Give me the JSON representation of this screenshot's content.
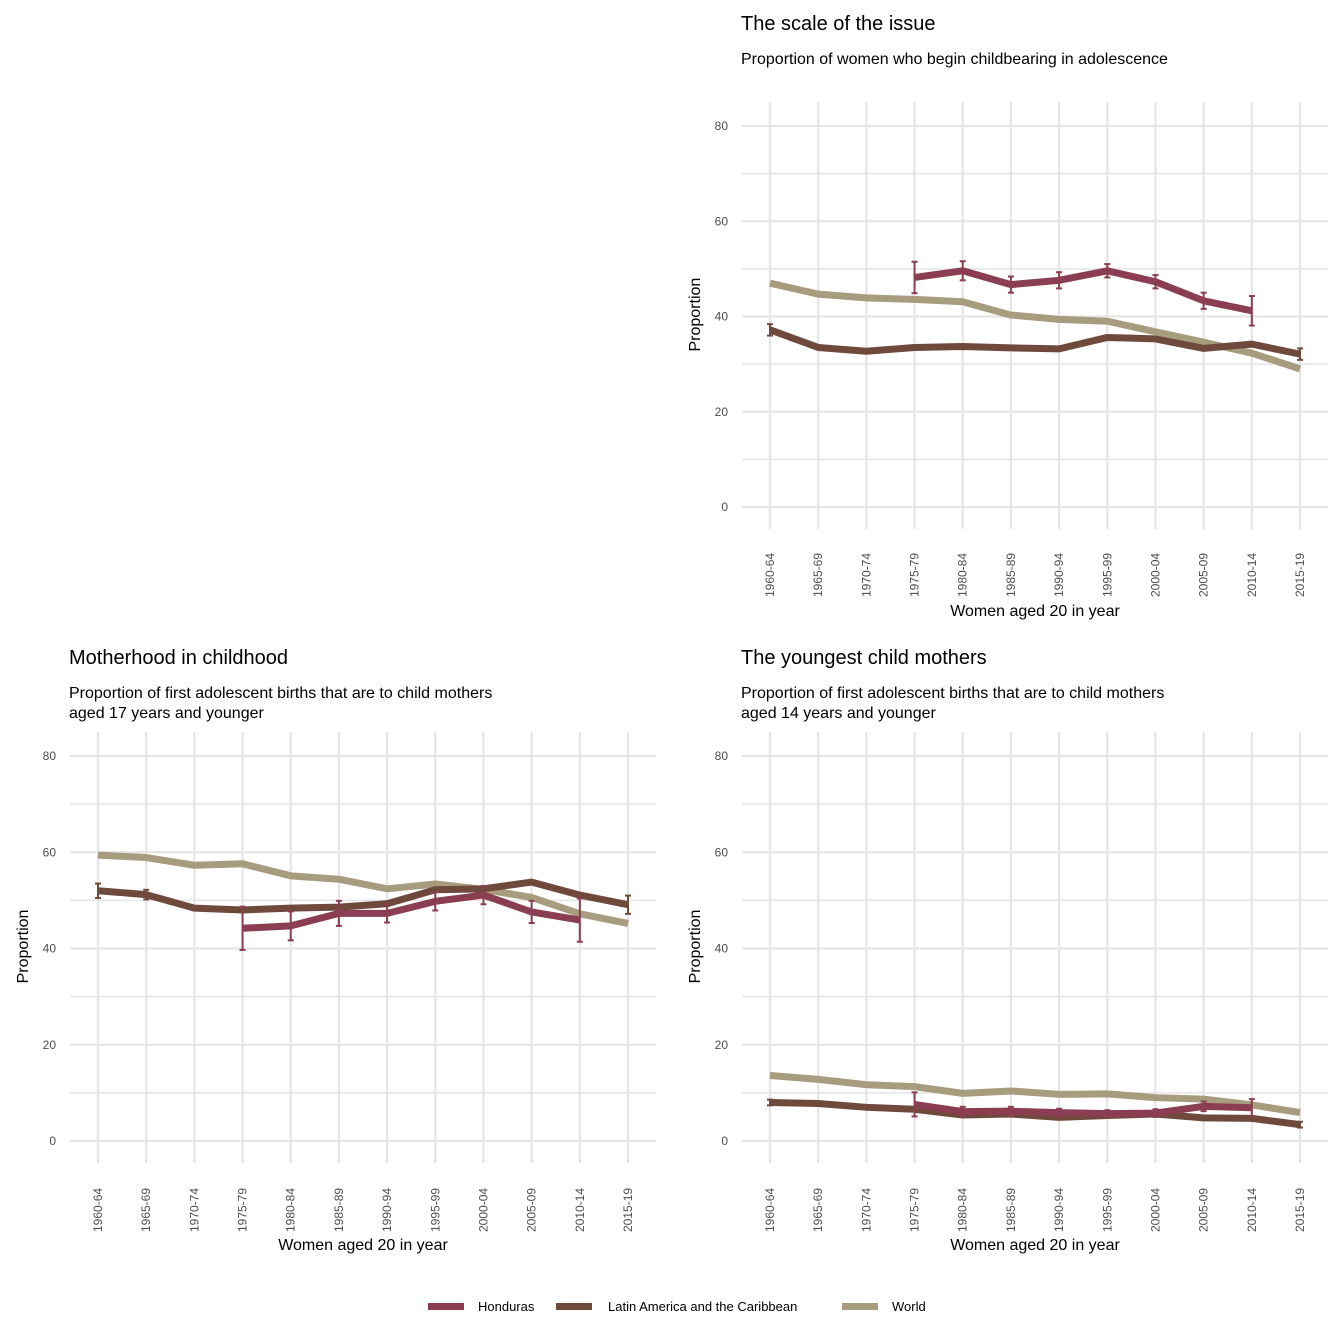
{
  "chart_data": [
    {
      "id": "scale",
      "type": "line",
      "title": "The scale of the issue",
      "subtitle": [
        "Proportion of women who begin childbearing in adolescence"
      ],
      "xlabel": "Women aged 20 in year",
      "ylabel": "Proportion",
      "ylim": [
        0,
        85
      ],
      "yticks": [
        0,
        20,
        40,
        60,
        80
      ],
      "grid": true,
      "categories": [
        "1960-64",
        "1965-69",
        "1970-74",
        "1975-79",
        "1980-84",
        "1985-89",
        "1990-94",
        "1995-99",
        "2000-04",
        "2005-09",
        "2010-14",
        "2015-19"
      ],
      "series": [
        {
          "name": "World",
          "values": [
            47.0,
            44.7,
            43.9,
            43.6,
            43.1,
            40.3,
            39.4,
            39.0,
            36.8,
            34.6,
            32.3,
            29.0
          ],
          "err": [
            null,
            null,
            null,
            null,
            null,
            null,
            null,
            null,
            null,
            null,
            null,
            null
          ]
        },
        {
          "name": "Latin America and the Caribbean",
          "values": [
            37.2,
            33.5,
            32.7,
            33.5,
            33.7,
            33.4,
            33.2,
            35.6,
            35.3,
            33.3,
            34.2,
            32.1
          ],
          "err": [
            1.2,
            null,
            null,
            null,
            null,
            null,
            null,
            null,
            null,
            null,
            null,
            1.2
          ]
        },
        {
          "name": "Honduras",
          "values": [
            null,
            null,
            null,
            48.2,
            49.6,
            46.7,
            47.6,
            49.6,
            47.3,
            43.3,
            41.2,
            null
          ],
          "err": [
            null,
            null,
            null,
            3.3,
            2.0,
            1.7,
            1.7,
            1.4,
            1.4,
            1.7,
            3.1,
            null
          ]
        }
      ]
    },
    {
      "id": "childhood",
      "type": "line",
      "title": "Motherhood in childhood",
      "subtitle": [
        "Proportion of first adolescent births that are to child mothers",
        "aged 17 years and younger"
      ],
      "xlabel": "Women aged 20 in year",
      "ylabel": "Proportion",
      "ylim": [
        0,
        85
      ],
      "yticks": [
        0,
        20,
        40,
        60,
        80
      ],
      "grid": true,
      "categories": [
        "1960-64",
        "1965-69",
        "1970-74",
        "1975-79",
        "1980-84",
        "1985-89",
        "1990-94",
        "1995-99",
        "2000-04",
        "2005-09",
        "2010-14",
        "2015-19"
      ],
      "series": [
        {
          "name": "World",
          "values": [
            59.4,
            58.9,
            57.3,
            57.6,
            55.1,
            54.4,
            52.4,
            53.4,
            52.3,
            50.6,
            47.2,
            45.2
          ],
          "err": [
            null,
            null,
            null,
            null,
            null,
            null,
            null,
            null,
            null,
            null,
            null,
            null
          ]
        },
        {
          "name": "Latin America and the Caribbean",
          "values": [
            52.0,
            51.2,
            48.4,
            48.0,
            48.4,
            48.6,
            49.3,
            52.2,
            52.4,
            53.8,
            51.1,
            49.1
          ],
          "err": [
            1.5,
            1.0,
            null,
            null,
            null,
            null,
            null,
            null,
            null,
            null,
            null,
            1.9
          ]
        },
        {
          "name": "Honduras",
          "values": [
            null,
            null,
            null,
            44.2,
            44.7,
            47.3,
            47.3,
            49.8,
            51.1,
            47.6,
            45.9,
            null
          ],
          "err": [
            null,
            null,
            null,
            4.5,
            3.0,
            2.6,
            1.9,
            1.9,
            1.9,
            2.3,
            4.5,
            null
          ]
        }
      ]
    },
    {
      "id": "youngest",
      "type": "line",
      "title": "The youngest child mothers",
      "subtitle": [
        "Proportion of first adolescent births that are to child mothers",
        "aged 14 years and younger"
      ],
      "xlabel": "Women aged 20 in year",
      "ylabel": "Proportion",
      "ylim": [
        0,
        85
      ],
      "yticks": [
        0,
        20,
        40,
        60,
        80
      ],
      "grid": true,
      "categories": [
        "1960-64",
        "1965-69",
        "1970-74",
        "1975-79",
        "1980-84",
        "1985-89",
        "1990-94",
        "1995-99",
        "2000-04",
        "2005-09",
        "2010-14",
        "2015-19"
      ],
      "series": [
        {
          "name": "World",
          "values": [
            13.6,
            12.8,
            11.7,
            11.3,
            9.9,
            10.4,
            9.7,
            9.8,
            9.0,
            8.7,
            7.5,
            5.9
          ],
          "err": [
            null,
            null,
            null,
            null,
            null,
            null,
            null,
            null,
            null,
            null,
            null,
            null
          ]
        },
        {
          "name": "Latin America and the Caribbean",
          "values": [
            8.0,
            7.8,
            7.0,
            6.6,
            5.4,
            5.6,
            4.9,
            5.3,
            5.6,
            4.8,
            4.7,
            3.4
          ],
          "err": [
            0.6,
            null,
            null,
            null,
            null,
            null,
            null,
            null,
            null,
            null,
            null,
            0.6
          ]
        },
        {
          "name": "Honduras",
          "values": [
            null,
            null,
            null,
            7.6,
            6.1,
            6.2,
            5.9,
            5.7,
            5.8,
            7.2,
            6.9,
            null
          ],
          "err": [
            null,
            null,
            null,
            2.5,
            1.0,
            0.9,
            0.8,
            0.7,
            0.8,
            1.0,
            1.8,
            null
          ]
        }
      ]
    }
  ],
  "legend": {
    "position": "bottom",
    "items": [
      {
        "name": "Honduras",
        "color": "#8b3e52"
      },
      {
        "name": "Latin America and the Caribbean",
        "color": "#6f4a3c"
      },
      {
        "name": "World",
        "color": "#a89c7f"
      }
    ]
  },
  "colors": {
    "Honduras": "#8b3e52",
    "Latin America and the Caribbean": "#6f4a3c",
    "World": "#a89c7f",
    "grid": "#e5e5e5"
  }
}
